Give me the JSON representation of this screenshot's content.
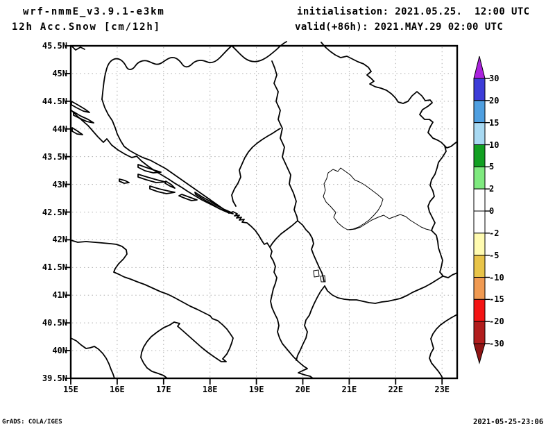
{
  "header": {
    "model": "wrf-nmmE_v3.9.1-e3km",
    "field": "12h Acc.Snow [cm/12h]",
    "init_label": "initialisation: 2021.05.25.  12:00 UTC",
    "valid_label": "valid(+86h): 2021.MAY.29 02:00 UTC"
  },
  "axes": {
    "lat_labels": [
      "45.5N",
      "45N",
      "44.5N",
      "44N",
      "43.5N",
      "43N",
      "42.5N",
      "42N",
      "41.5N",
      "41N",
      "40.5N",
      "40N",
      "39.5N"
    ],
    "lon_labels": [
      "15E",
      "16E",
      "17E",
      "18E",
      "19E",
      "20E",
      "21E",
      "22E",
      "23E"
    ]
  },
  "colorbar": {
    "levels": [
      "30",
      "20",
      "15",
      "10",
      "5",
      "2",
      "0",
      "-2",
      "-5",
      "-10",
      "-15",
      "-20",
      "-30"
    ],
    "segment_colors": [
      "#3c3cd8",
      "#4f9fe0",
      "#a8d9f2",
      "#12a022",
      "#7fe97f",
      "#ffffff",
      "#ffffff",
      "#fffbb0",
      "#e8c449",
      "#f09a52",
      "#f31414",
      "#b21d1d"
    ],
    "arrow_top_color": "#aa22dd",
    "arrow_bottom_color": "#8f1414"
  },
  "footer": {
    "left": "GrADS: COLA/IGES",
    "right": "2021-05-25-23:06"
  },
  "chart_data": {
    "type": "heatmap",
    "title": "12h Acc.Snow [cm/12h]",
    "model": "wrf-nmmE_v3.9.1-e3km",
    "initialisation": "2021.05.25. 12:00 UTC",
    "valid": "(+86h) 2021.MAY.29 02:00 UTC",
    "x_tick_labels": [
      "15E",
      "16E",
      "17E",
      "18E",
      "19E",
      "20E",
      "21E",
      "22E",
      "23E"
    ],
    "y_tick_labels": [
      "39.5N",
      "40N",
      "40.5N",
      "41N",
      "41.5N",
      "42N",
      "42.5N",
      "43N",
      "43.5N",
      "44N",
      "44.5N",
      "45N",
      "45.5N"
    ],
    "x_range_deg_east": [
      15,
      23.3
    ],
    "y_range_deg_north": [
      39.5,
      45.5
    ],
    "colorbar_levels_cm_per_12h": [
      30,
      20,
      15,
      10,
      5,
      2,
      0,
      -2,
      -5,
      -10,
      -15,
      -20,
      -30
    ],
    "field_values": "entire map domain is unshaded (no accumulated snow plotted); only coastlines and country borders of the Balkans/Adriatic region are visible",
    "grid": true,
    "legend_position": "right colorbar"
  }
}
